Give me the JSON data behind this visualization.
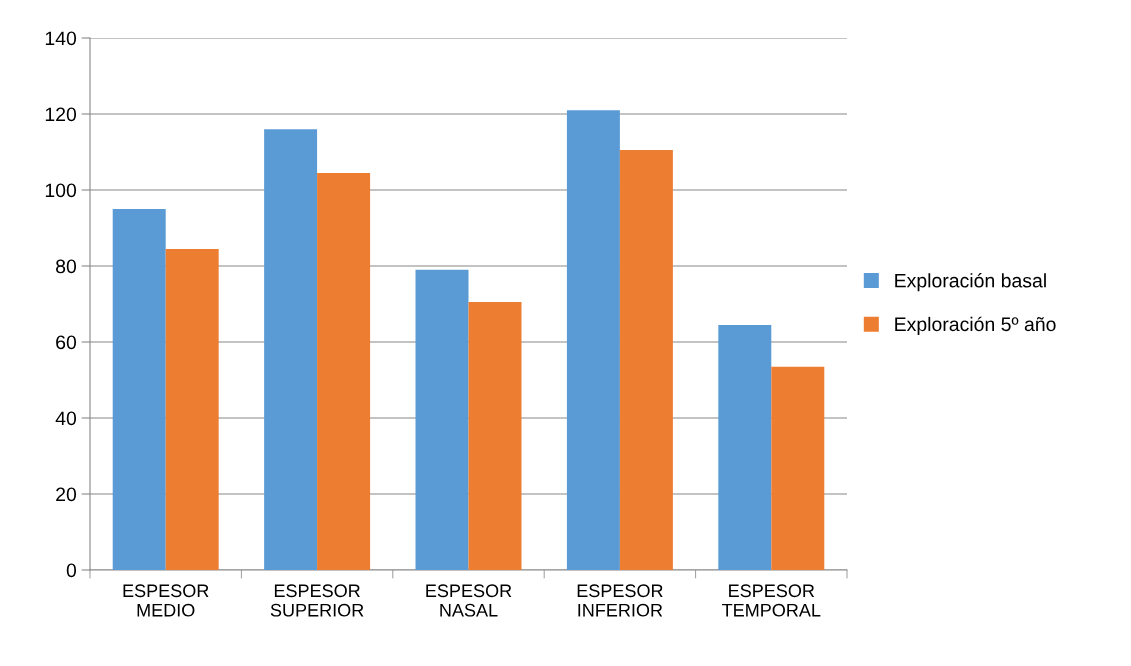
{
  "chart_data": {
    "type": "bar",
    "categories": [
      "ESPESOR\nMEDIO",
      "ESPESOR\nSUPERIOR",
      "ESPESOR\nNASAL",
      "ESPESOR\nINFERIOR",
      "ESPESOR\nTEMPORAL"
    ],
    "series": [
      {
        "name": "Exploración basal",
        "color": "#5b9bd5",
        "values": [
          95,
          116,
          79,
          121,
          64.5
        ]
      },
      {
        "name": "Exploración 5º año",
        "color": "#ed7d31",
        "values": [
          84.5,
          104.5,
          70.5,
          110.5,
          53.5
        ]
      }
    ],
    "ylim": [
      0,
      140
    ],
    "yticks": [
      0,
      20,
      40,
      60,
      80,
      100,
      120,
      140
    ],
    "grid": "y",
    "legend": "right"
  }
}
